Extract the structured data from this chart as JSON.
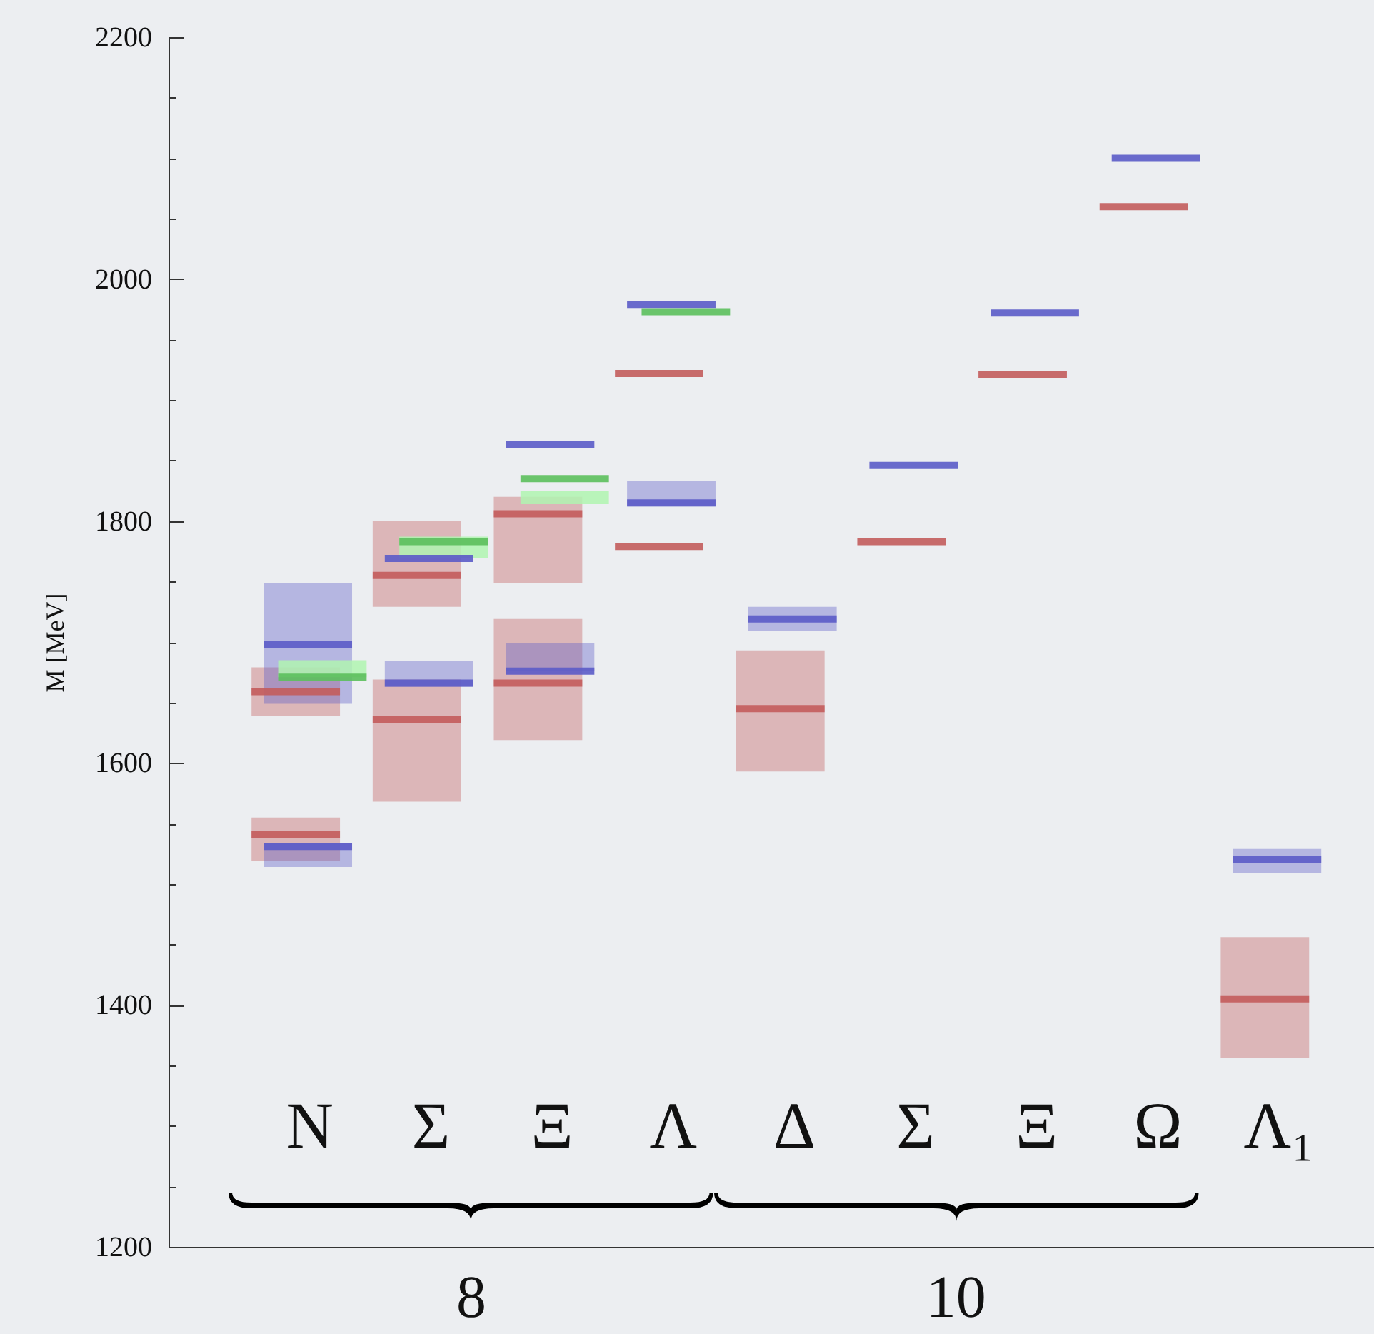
{
  "chart_data": {
    "type": "box",
    "ylabel": "M [MeV]",
    "categories": [
      "N",
      "Σ",
      "Ξ",
      "Λ",
      "Δ",
      "Σ",
      "Ξ",
      "Ω",
      "Λ₁"
    ],
    "ylim": [
      1200,
      2200
    ],
    "yticks": [
      1200,
      {
        "value": 1250,
        "label": null
      },
      {
        "value": 1300,
        "label": null
      },
      {
        "value": 1350,
        "label": null
      },
      1400,
      {
        "value": 1450,
        "label": null
      },
      {
        "value": 1500,
        "label": null
      },
      {
        "value": 1550,
        "label": null
      },
      1600,
      {
        "value": 1650,
        "label": null
      },
      {
        "value": 1700,
        "label": null
      },
      {
        "value": 1750,
        "label": null
      },
      1800,
      {
        "value": 1850,
        "label": null
      },
      {
        "value": 1900,
        "label": null
      },
      {
        "value": 1950,
        "label": null
      },
      2000,
      {
        "value": 2050,
        "label": null
      },
      {
        "value": 2100,
        "label": null
      },
      {
        "value": 2150,
        "label": null
      },
      2200
    ],
    "series": [
      {
        "color": "#c35c5c",
        "boxes": [
          {
            "low": 1519,
            "q1": 1519,
            "median": 1541,
            "q3": 1555,
            "high": 1555
          },
          {
            "low": 1729,
            "q1": 1729,
            "median": 1755,
            "q3": 1800,
            "high": 1800
          },
          {
            "low": 1749,
            "q1": 1749,
            "median": 1806,
            "q3": 1820,
            "high": 1820
          },
          {
            "low": 1922,
            "q1": 1922,
            "median": 1922,
            "q3": 1922,
            "high": 1922
          },
          {
            "low": 1593,
            "q1": 1593,
            "median": 1645,
            "q3": 1693,
            "high": 1693
          },
          {
            "low": 1783,
            "q1": 1783,
            "median": 1783,
            "q3": 1783,
            "high": 1783
          },
          {
            "low": 1921,
            "q1": 1921,
            "median": 1921,
            "q3": 1921,
            "high": 1921
          },
          {
            "low": 2060,
            "q1": 2060,
            "median": 2060,
            "q3": 2060,
            "high": 2060
          },
          {
            "low": 1356,
            "q1": 1356,
            "median": 1405,
            "q3": 1456,
            "high": 1456
          }
        ]
      },
      {
        "color": "#c35c5c",
        "boxes": [
          {
            "low": 1639,
            "q1": 1639,
            "median": 1659,
            "q3": 1679,
            "high": 1679
          },
          {
            "low": 1568,
            "q1": 1568,
            "median": 1636,
            "q3": 1669,
            "high": 1669
          },
          {
            "low": 1619,
            "q1": 1619,
            "median": 1666,
            "q3": 1719,
            "high": 1719
          },
          {
            "low": 1779,
            "q1": 1779,
            "median": 1779,
            "q3": 1779,
            "high": 1779
          },
          null,
          null,
          null,
          null,
          null
        ]
      },
      {
        "color": "#5b5bc8",
        "boxes": [
          {
            "low": 1514,
            "q1": 1514,
            "median": 1531,
            "q3": 1534,
            "high": 1534
          },
          {
            "low": 1769,
            "q1": 1769,
            "median": 1769,
            "q3": 1769,
            "high": 1769
          },
          {
            "low": 1863,
            "q1": 1863,
            "median": 1863,
            "q3": 1863,
            "high": 1863
          },
          {
            "low": 1979,
            "q1": 1979,
            "median": 1979,
            "q3": 1979,
            "high": 1979
          },
          {
            "low": 1709,
            "q1": 1709,
            "median": 1719,
            "q3": 1729,
            "high": 1729
          },
          {
            "low": 1846,
            "q1": 1846,
            "median": 1846,
            "q3": 1846,
            "high": 1846
          },
          {
            "low": 1972,
            "q1": 1972,
            "median": 1972,
            "q3": 1972,
            "high": 1972
          },
          {
            "low": 2100,
            "q1": 2100,
            "median": 2100,
            "q3": 2100,
            "high": 2100
          },
          {
            "low": 1509,
            "q1": 1509,
            "median": 1520,
            "q3": 1529,
            "high": 1529
          }
        ]
      },
      {
        "color": "#5b5bc8",
        "boxes": [
          {
            "low": 1649,
            "q1": 1649,
            "median": 1698,
            "q3": 1749,
            "high": 1749
          },
          {
            "low": 1663,
            "q1": 1663,
            "median": 1666,
            "q3": 1684,
            "high": 1684
          },
          {
            "low": 1676,
            "q1": 1676,
            "median": 1676,
            "q3": 1699,
            "high": 1699
          },
          {
            "low": 1812,
            "q1": 1812,
            "median": 1815,
            "q3": 1833,
            "high": 1833
          },
          null,
          null,
          null,
          null,
          null
        ]
      },
      {
        "color": "#5cbf5c",
        "boxes": [
          {
            "low": 1671,
            "q1": 1671,
            "median": 1671,
            "q3": 1671,
            "high": 1671
          },
          {
            "low": 1783,
            "q1": 1783,
            "median": 1783,
            "q3": 1783,
            "high": 1783
          },
          {
            "low": 1835,
            "q1": 1835,
            "median": 1835,
            "q3": 1835,
            "high": 1835
          },
          {
            "low": 1973,
            "q1": 1973,
            "median": 1973,
            "q3": 1973,
            "high": 1973
          },
          null,
          null,
          null,
          null,
          null
        ]
      },
      {
        "type": "bar",
        "color": "#b0f5b0",
        "base": [
          1671,
          1769,
          1814,
          null,
          null,
          null,
          null,
          null,
          null
        ],
        "values": [
          14,
          18,
          11,
          null,
          null,
          null,
          null,
          null,
          null
        ]
      }
    ],
    "annotations": [
      "8",
      "10"
    ]
  }
}
